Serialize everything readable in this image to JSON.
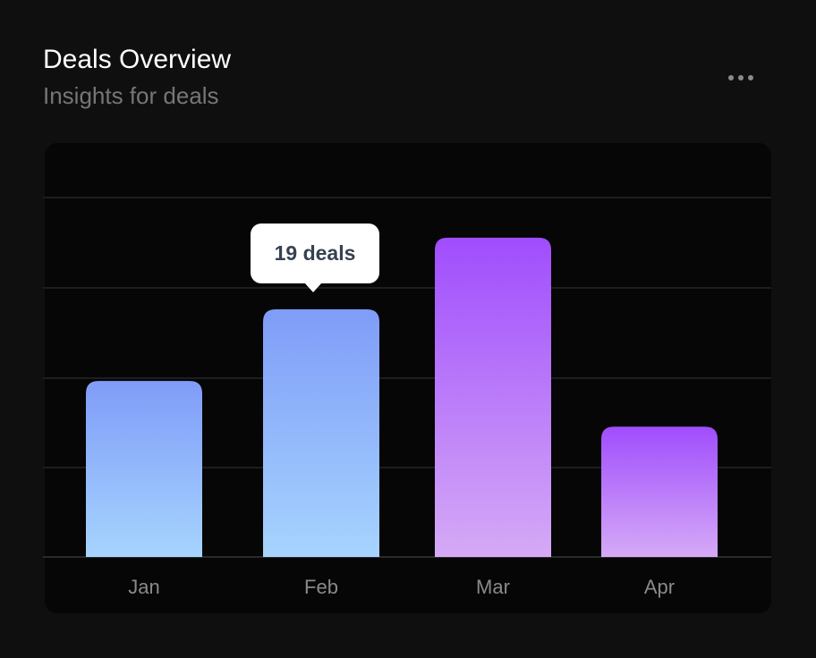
{
  "header": {
    "title": "Deals Overview",
    "subtitle": "Insights for deals",
    "menu_icon": "more-horizontal-icon"
  },
  "tooltip": {
    "label": "19 deals",
    "category": "Feb"
  },
  "chart_data": {
    "type": "bar",
    "categories": [
      "Jan",
      "Feb",
      "Mar",
      "Apr"
    ],
    "values": [
      13.5,
      19,
      24.5,
      10
    ],
    "unit": "deals",
    "grid": true,
    "colors": [
      {
        "top": "#7f9cf8",
        "bottom": "#a6d4fe"
      },
      {
        "top": "#7f9cf8",
        "bottom": "#a6d4fe"
      },
      {
        "top": "#a04dfd",
        "bottom": "#d5aaf6"
      },
      {
        "top": "#a04dfd",
        "bottom": "#d5aaf6"
      }
    ]
  }
}
